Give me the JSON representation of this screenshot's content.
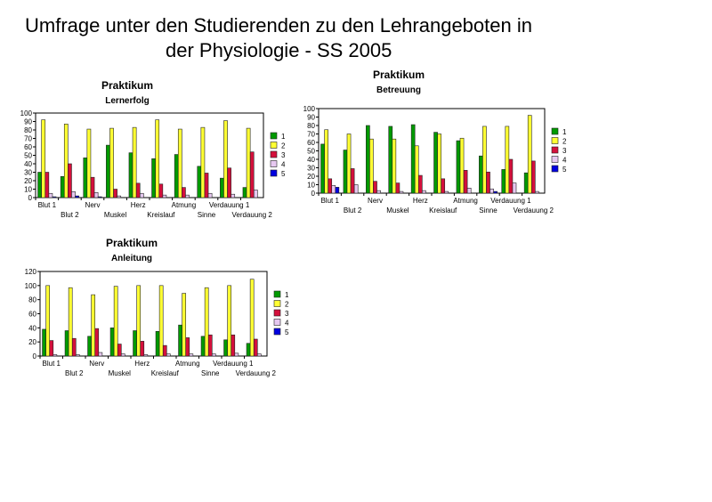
{
  "slide": {
    "title_lines": [
      "Umfrage unter den Studierenden zu den Lehrangeboten in",
      "der Physiologie - SS 2005"
    ]
  },
  "chart_data": [
    {
      "type": "bar",
      "title": "Praktikum",
      "subtitle": "Lernerfolg",
      "categories": [
        "Blut 1",
        "Blut 2",
        "Nerv",
        "Muskel",
        "Herz",
        "Kreislauf",
        "Atmung",
        "Sinne",
        "Verdauung 1",
        "Verdauung 2"
      ],
      "series": [
        {
          "name": "1",
          "color": "#009a00",
          "values": [
            30,
            25,
            47,
            62,
            53,
            46,
            51,
            37,
            23,
            12
          ]
        },
        {
          "name": "2",
          "color": "#ffff33",
          "values": [
            92,
            87,
            81,
            82,
            83,
            92,
            81,
            83,
            91,
            82
          ]
        },
        {
          "name": "3",
          "color": "#d4103c",
          "values": [
            30,
            40,
            24,
            10,
            17,
            16,
            12,
            29,
            35,
            54
          ]
        },
        {
          "name": "4",
          "color": "#e6c8f0",
          "values": [
            5,
            7,
            6,
            2,
            5,
            3,
            3,
            5,
            4,
            9
          ]
        },
        {
          "name": "5",
          "color": "#0000e0",
          "values": [
            1,
            2,
            1,
            0,
            0,
            0,
            0,
            0,
            0,
            0
          ]
        }
      ],
      "ylim": [
        0,
        100
      ],
      "yticks": [
        0,
        10,
        20,
        30,
        40,
        50,
        60,
        70,
        80,
        90,
        100
      ],
      "grid": false,
      "legend": "right"
    },
    {
      "type": "bar",
      "title": "Praktikum",
      "subtitle": "Betreuung",
      "categories": [
        "Blut 1",
        "Blut 2",
        "Nerv",
        "Muskel",
        "Herz",
        "Kreislauf",
        "Atmung",
        "Sinne",
        "Verdauung 1",
        "Verdauung 2"
      ],
      "series": [
        {
          "name": "1",
          "color": "#009a00",
          "values": [
            58,
            51,
            80,
            79,
            81,
            72,
            62,
            44,
            28,
            24
          ]
        },
        {
          "name": "2",
          "color": "#ffff33",
          "values": [
            75,
            70,
            64,
            64,
            56,
            70,
            65,
            79,
            79,
            92
          ]
        },
        {
          "name": "3",
          "color": "#d4103c",
          "values": [
            17,
            29,
            14,
            12,
            21,
            17,
            27,
            25,
            40,
            38
          ]
        },
        {
          "name": "4",
          "color": "#e6c8f0",
          "values": [
            9,
            10,
            3,
            2,
            3,
            2,
            6,
            5,
            12,
            2
          ]
        },
        {
          "name": "5",
          "color": "#0000e0",
          "values": [
            7,
            0,
            0,
            0,
            0,
            0,
            0,
            2,
            0,
            0
          ]
        }
      ],
      "ylim": [
        0,
        100
      ],
      "yticks": [
        0,
        10,
        20,
        30,
        40,
        50,
        60,
        70,
        80,
        90,
        100
      ],
      "grid": false,
      "legend": "right"
    },
    {
      "type": "bar",
      "title": "Praktikum",
      "subtitle": "Anleitung",
      "categories": [
        "Blut 1",
        "Blut 2",
        "Nerv",
        "Muskel",
        "Herz",
        "Kreislauf",
        "Atmung",
        "Sinne",
        "Verdauung 1",
        "Verdauung 2"
      ],
      "series": [
        {
          "name": "1",
          "color": "#009a00",
          "values": [
            38,
            36,
            28,
            40,
            36,
            35,
            44,
            28,
            23,
            18
          ]
        },
        {
          "name": "2",
          "color": "#ffff33",
          "values": [
            100,
            97,
            87,
            99,
            100,
            100,
            89,
            97,
            100,
            109
          ]
        },
        {
          "name": "3",
          "color": "#d4103c",
          "values": [
            22,
            25,
            39,
            17,
            21,
            15,
            26,
            30,
            30,
            24
          ]
        },
        {
          "name": "4",
          "color": "#e6c8f0",
          "values": [
            2,
            2,
            5,
            3,
            2,
            3,
            3,
            3,
            4,
            3
          ]
        },
        {
          "name": "5",
          "color": "#0000e0",
          "values": [
            0,
            0,
            0,
            0,
            0,
            0,
            0,
            0,
            0,
            0
          ]
        }
      ],
      "ylim": [
        0,
        120
      ],
      "yticks": [
        0,
        20,
        40,
        60,
        80,
        100,
        120
      ],
      "grid": false,
      "legend": "right"
    }
  ]
}
